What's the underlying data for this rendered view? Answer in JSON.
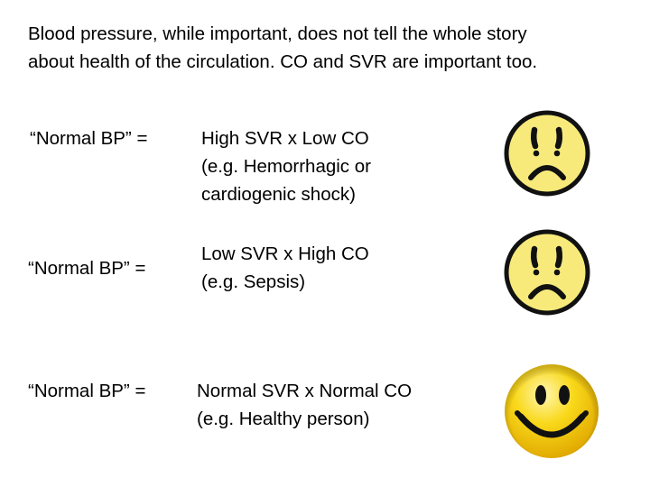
{
  "intro": {
    "line1": "Blood pressure, while important, does not tell the whole story",
    "line2": "about health of the circulation. CO and SVR are important too."
  },
  "rows": [
    {
      "lhs": "“Normal BP” =",
      "rhs": "High SVR x Low CO\n(e.g. Hemorrhagic or\ncardiogenic shock)",
      "face_icon": "frowning-face-icon",
      "face_color": "#f7ea7b"
    },
    {
      "lhs": "“Normal BP” =",
      "rhs": "Low SVR x High CO\n(e.g. Sepsis)",
      "face_icon": "frowning-face-icon",
      "face_color": "#f7ea7b"
    },
    {
      "lhs": "“Normal BP” =",
      "rhs": "Normal SVR x Normal CO\n(e.g. Healthy person)",
      "face_icon": "smiling-face-icon",
      "face_color": "#f5c400"
    }
  ]
}
